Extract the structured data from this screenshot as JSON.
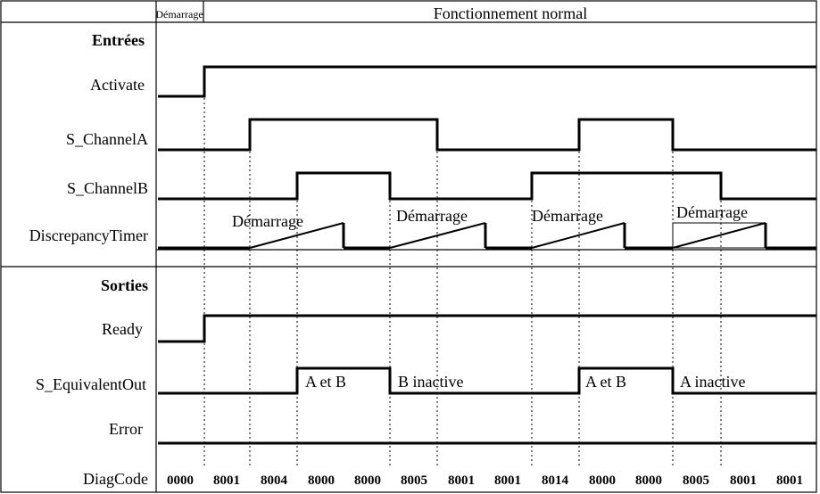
{
  "header": {
    "startup_label": "Démarrage",
    "normal_label": "Fonctionnement normal"
  },
  "sections": {
    "inputs": "Entrées",
    "outputs": "Sorties"
  },
  "signals": {
    "activate": "Activate",
    "channel_a": "S_ChannelA",
    "channel_b": "S_ChannelB",
    "discrepancy_timer": "DiscrepancyTimer",
    "ready": "Ready",
    "equivalent_out": "S_EquivalentOut",
    "error": "Error",
    "diagcode": "DiagCode"
  },
  "timer_annotations": [
    "Démarrage",
    "Démarrage",
    "Démarrage",
    "Démarrage"
  ],
  "output_annotations": [
    "A et B",
    "B inactive",
    "A et B",
    "A inactive"
  ],
  "diag_codes": [
    "0000",
    "8001",
    "8004",
    "8000",
    "8000",
    "8005",
    "8001",
    "8001",
    "8014",
    "8000",
    "8000",
    "8005",
    "8001",
    "8001"
  ]
}
